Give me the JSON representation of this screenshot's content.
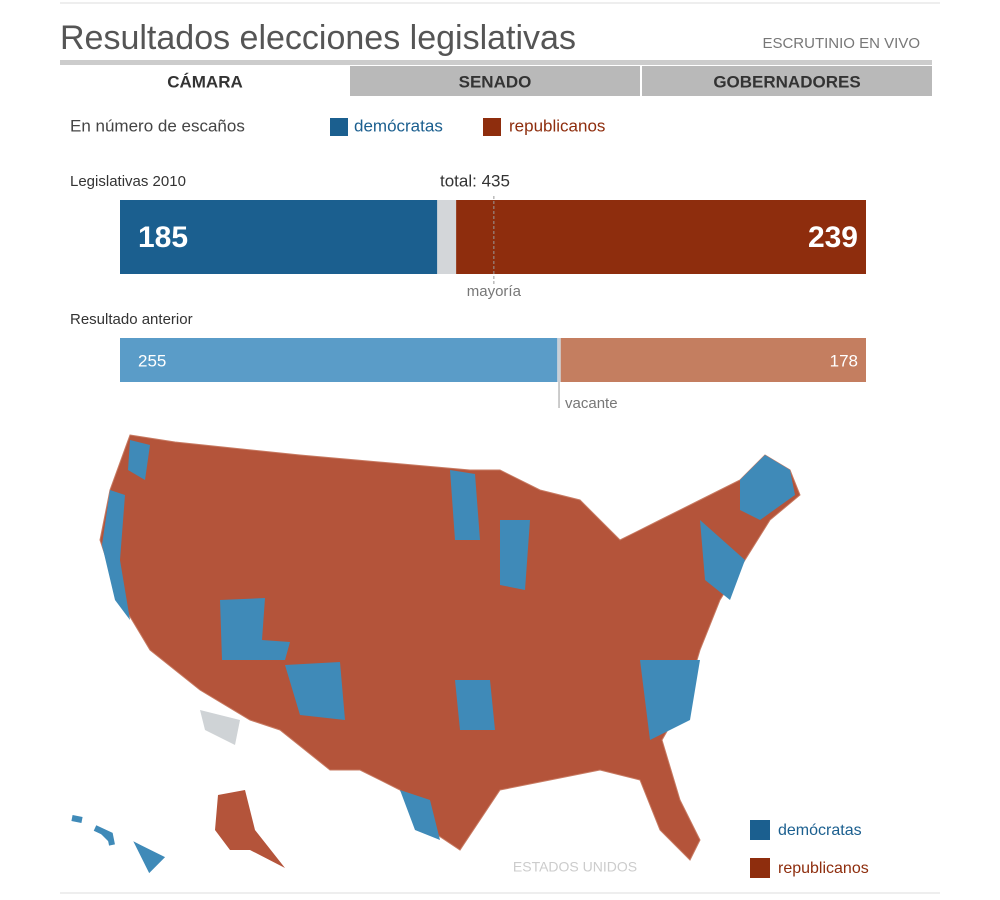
{
  "header": {
    "title": "Resultados elecciones legislativas",
    "status": "ESCRUTINIO EN VIVO"
  },
  "tabs": [
    "CÁMARA",
    "SENADO",
    "GOBERNADORES"
  ],
  "legend": {
    "caption": "En número de escaños"
  },
  "chart_data": [
    {
      "type": "bar",
      "stacked": true,
      "title": "Legislativas 2010",
      "total_label": "total: 435",
      "xlim": [
        0,
        435
      ],
      "annotation": {
        "value": 218,
        "label": "mayoría"
      },
      "series": [
        {
          "name": "demócratas",
          "color": "#1b5f8f",
          "values": [
            185
          ]
        },
        {
          "color": "#d3d6d9",
          "values": [
            11
          ]
        },
        {
          "name": "republicanos",
          "color": "#8e2d0d",
          "values": [
            239
          ]
        }
      ]
    },
    {
      "type": "bar",
      "stacked": true,
      "title": "Resultado anterior",
      "xlim": [
        0,
        435
      ],
      "series": [
        {
          "name": "demócratas",
          "color": "#5a9cc8",
          "values": [
            255
          ]
        },
        {
          "name": "vacante",
          "color": "#c9cfd6",
          "values": [
            2
          ]
        },
        {
          "name": "republicanos",
          "color": "#c47e60",
          "values": [
            178
          ]
        }
      ]
    }
  ],
  "map": {
    "label": "ESTADOS UNIDOS"
  }
}
